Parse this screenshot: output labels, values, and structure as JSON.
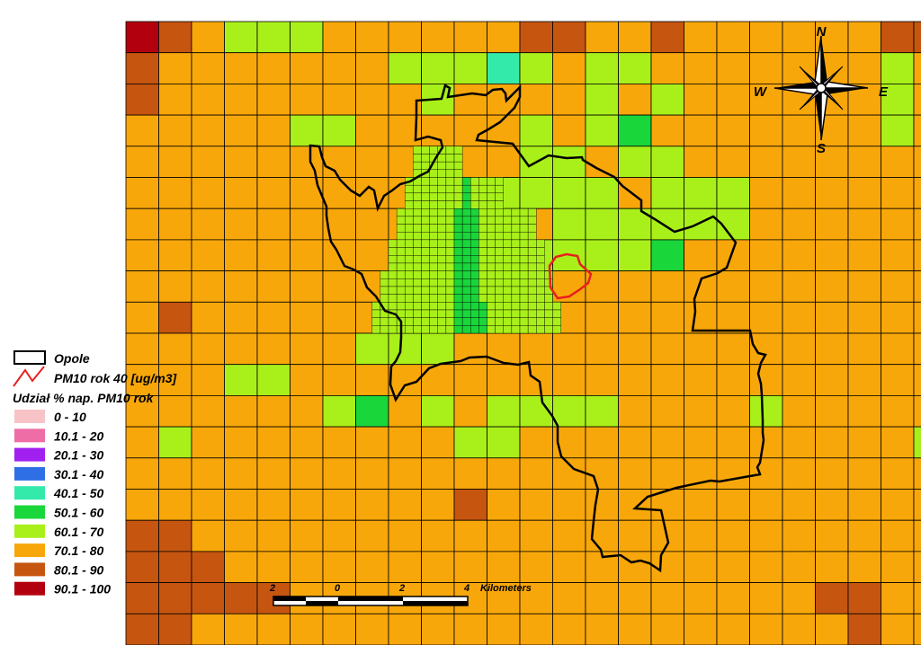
{
  "map": {
    "legend": {
      "boundary_label": "Opole",
      "contour_label": "PM10 rok 40 [ug/m3]",
      "classes_title": "Udział % nap. PM10 rok",
      "classes": [
        {
          "label": "0 - 10",
          "color": "#f7c3c6"
        },
        {
          "label": "10.1 - 20",
          "color": "#ee6da6"
        },
        {
          "label": "20.1 - 30",
          "color": "#a020f0"
        },
        {
          "label": "30.1 - 40",
          "color": "#2f6fe6"
        },
        {
          "label": "40.1 - 50",
          "color": "#33eaaa"
        },
        {
          "label": "50.1 - 60",
          "color": "#19d63a"
        },
        {
          "label": "60.1 - 70",
          "color": "#a9f01a"
        },
        {
          "label": "70.1 - 80",
          "color": "#f8a70a"
        },
        {
          "label": "80.1 - 90",
          "color": "#c65510"
        },
        {
          "label": "90.1 - 100",
          "color": "#b3000e"
        }
      ]
    },
    "compass": {
      "north": "N",
      "south": "S",
      "east": "E",
      "west": "W"
    },
    "scale_bar": {
      "ticks": [
        "2",
        "0",
        "2",
        "4"
      ],
      "unit": "Kilometers"
    },
    "colors": {
      "boundary": "#000000",
      "contour": "#e8201e",
      "grid_line": "#000000"
    },
    "coarse_grid": [
      "98766677777788778777777887",
      "87777777666467667777777678",
      "87777777767777676777777677",
      "77777667777767657777777677",
      "77777777777766766777777777",
      "77777777776666676667777777",
      "77777777777776666667777777",
      "77777777766466665777777777",
      "77777777777777777777777777",
      "78777777766677777777777777",
      "77777776667777777777777777",
      "77766777777777777777777777",
      "77777765767666677776777777",
      "76777777776677777777777767",
      "77777777777777777777777777",
      "77777777778777777777777777",
      "88777777777777777777777777",
      "88877777777777777777777777",
      "88888777777777777777788777",
      "88777777777777777777778777"
    ],
    "fine_grid_rows": [
      {
        "r": 4,
        "cells": "000000000000000000000000000000000006666660000000000000000000000000000000000000000000000000000000000000000000"
      },
      {
        "r": 5,
        "cells": "000000000000000000000000000000000066666665666600000000000000000000000000000000000000000000000000000000000000"
      },
      {
        "r": 6,
        "cells": "000000000000000000000000000000000666666655566666660000000000000000000000000000000000000000000000000000000000"
      },
      {
        "r": 7,
        "cells": "000000000000000000000000000000006666666655566666666000000000000000000000000000000000000000000000000000000000"
      },
      {
        "r": 8,
        "cells": "000000000000000000000000000000066666666655566666666600000000000000000000000000000000000000000000000000000000"
      },
      {
        "r": 9,
        "cells": "000000000000000000000000000000666666666655556666666660000000000000000000000000000000000000000000000000000000"
      }
    ]
  }
}
